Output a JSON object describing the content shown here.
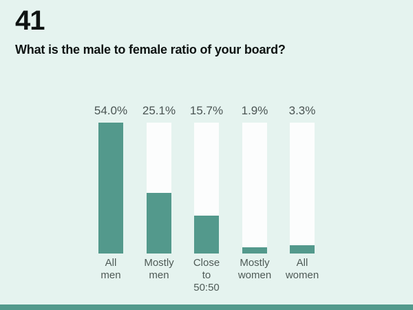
{
  "page": {
    "background_color": "#e5f3ef",
    "accent_color": "#53998c",
    "track_color": "#fcfdfd",
    "heading_color": "#0f1413",
    "label_color": "#4e5a56"
  },
  "slide": {
    "number": "41",
    "question": "What is the male to female ratio of your board?"
  },
  "chart_data": {
    "type": "bar",
    "categories": [
      "All\nmen",
      "Mostly\nmen",
      "Close to\n50:50",
      "Mostly\nwomen",
      "All\nwomen"
    ],
    "values": [
      54.0,
      25.1,
      15.7,
      1.9,
      3.3
    ],
    "value_labels": [
      "54.0%",
      "25.1%",
      "15.7%",
      "1.9%",
      "3.3%"
    ],
    "title": "What is the male to female ratio of your board?",
    "xlabel": "",
    "ylabel": "",
    "ylim": [
      0,
      54
    ],
    "grid": false,
    "legend": false,
    "bar_color": "#53998c",
    "track_full_height_represents_max": true
  }
}
